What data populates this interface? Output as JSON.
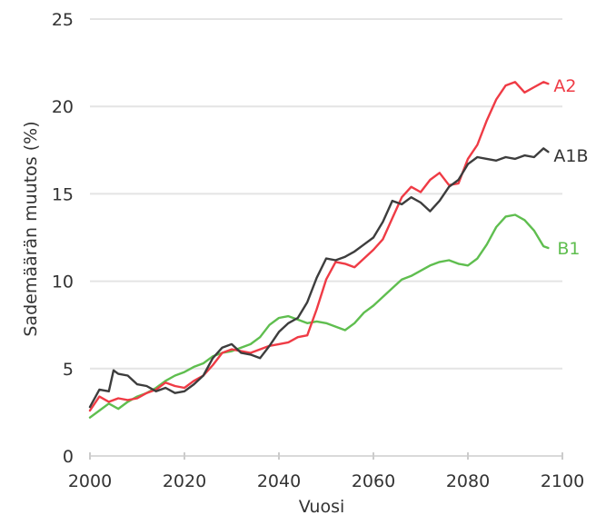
{
  "chart_data": {
    "type": "line",
    "title": "",
    "xlabel": "Vuosi",
    "ylabel": "Sademäärän muutos (%)",
    "xlim": [
      2000,
      2100
    ],
    "ylim": [
      0,
      25
    ],
    "xticks": [
      2000,
      2020,
      2040,
      2060,
      2080,
      2100
    ],
    "yticks": [
      0,
      5,
      10,
      15,
      20,
      25
    ],
    "grid": true,
    "legend": "inline labels at line ends",
    "series": [
      {
        "name": "A2",
        "color": "#ef3b45",
        "x": [
          2000,
          2002,
          2004,
          2006,
          2008,
          2010,
          2012,
          2014,
          2016,
          2018,
          2020,
          2022,
          2024,
          2026,
          2028,
          2030,
          2032,
          2034,
          2036,
          2038,
          2040,
          2042,
          2044,
          2046,
          2048,
          2050,
          2052,
          2054,
          2056,
          2058,
          2060,
          2062,
          2064,
          2066,
          2068,
          2070,
          2072,
          2074,
          2076,
          2078,
          2080,
          2082,
          2084,
          2086,
          2088,
          2090,
          2092,
          2094,
          2096,
          2097
        ],
        "y": [
          2.6,
          3.4,
          3.1,
          3.3,
          3.2,
          3.3,
          3.6,
          3.8,
          4.2,
          4.0,
          3.9,
          4.3,
          4.6,
          5.2,
          5.9,
          6.1,
          6.0,
          5.9,
          6.1,
          6.3,
          6.4,
          6.5,
          6.8,
          6.9,
          8.4,
          10.1,
          11.1,
          11.0,
          10.8,
          11.3,
          11.8,
          12.4,
          13.6,
          14.8,
          15.4,
          15.1,
          15.8,
          16.2,
          15.5,
          15.6,
          17.0,
          17.8,
          19.2,
          20.4,
          21.2,
          21.4,
          20.8,
          21.1,
          21.4,
          21.3
        ]
      },
      {
        "name": "A1B",
        "color": "#3d3d3d",
        "x": [
          2000,
          2002,
          2004,
          2005,
          2006,
          2008,
          2010,
          2012,
          2014,
          2016,
          2018,
          2020,
          2022,
          2024,
          2026,
          2028,
          2030,
          2032,
          2034,
          2036,
          2038,
          2040,
          2042,
          2044,
          2046,
          2048,
          2050,
          2052,
          2054,
          2056,
          2058,
          2060,
          2062,
          2064,
          2066,
          2068,
          2070,
          2072,
          2074,
          2076,
          2078,
          2080,
          2082,
          2084,
          2086,
          2088,
          2090,
          2092,
          2094,
          2096,
          2097
        ],
        "y": [
          2.8,
          3.8,
          3.7,
          4.9,
          4.7,
          4.6,
          4.1,
          4.0,
          3.7,
          3.9,
          3.6,
          3.7,
          4.1,
          4.6,
          5.6,
          6.2,
          6.4,
          5.9,
          5.8,
          5.6,
          6.3,
          7.1,
          7.6,
          7.9,
          8.8,
          10.2,
          11.3,
          11.2,
          11.4,
          11.7,
          12.1,
          12.5,
          13.4,
          14.6,
          14.4,
          14.8,
          14.5,
          14.0,
          14.6,
          15.4,
          15.8,
          16.7,
          17.1,
          17.0,
          16.9,
          17.1,
          17.0,
          17.2,
          17.1,
          17.6,
          17.4
        ]
      },
      {
        "name": "B1",
        "color": "#5fbe4f",
        "x": [
          2000,
          2002,
          2004,
          2006,
          2008,
          2010,
          2012,
          2014,
          2016,
          2018,
          2020,
          2022,
          2024,
          2026,
          2028,
          2030,
          2032,
          2034,
          2036,
          2038,
          2040,
          2042,
          2044,
          2046,
          2048,
          2050,
          2052,
          2054,
          2056,
          2058,
          2060,
          2062,
          2064,
          2066,
          2068,
          2070,
          2072,
          2074,
          2076,
          2078,
          2080,
          2082,
          2084,
          2086,
          2088,
          2090,
          2092,
          2094,
          2096,
          2097
        ],
        "y": [
          2.2,
          2.6,
          3.0,
          2.7,
          3.1,
          3.4,
          3.6,
          3.9,
          4.3,
          4.6,
          4.8,
          5.1,
          5.3,
          5.7,
          5.9,
          6.0,
          6.2,
          6.4,
          6.8,
          7.5,
          7.9,
          8.0,
          7.8,
          7.6,
          7.7,
          7.6,
          7.4,
          7.2,
          7.6,
          8.2,
          8.6,
          9.1,
          9.6,
          10.1,
          10.3,
          10.6,
          10.9,
          11.1,
          11.2,
          11.0,
          10.9,
          11.3,
          12.1,
          13.1,
          13.7,
          13.8,
          13.5,
          12.9,
          12.0,
          11.9
        ]
      }
    ]
  }
}
